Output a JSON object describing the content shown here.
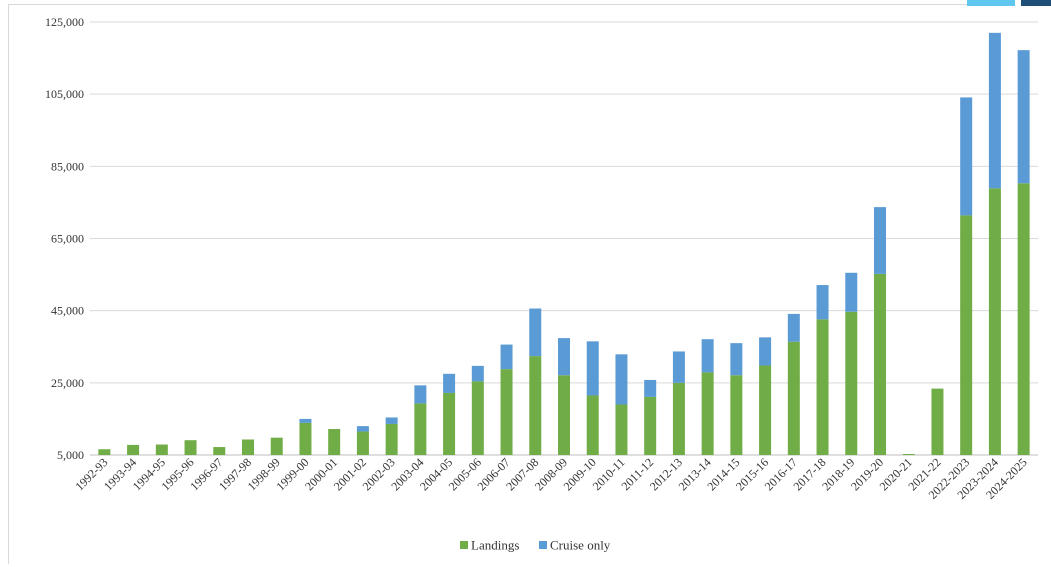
{
  "colors": {
    "landings": "#70ad47",
    "cruise": "#5b9bd5",
    "grid": "#d9d9d9",
    "axis": "#bfbfbf"
  },
  "chart_data": {
    "type": "bar",
    "stacked": true,
    "categories": [
      "1992-93",
      "1993-94",
      "1994-95",
      "1995-96",
      "1996-97",
      "1997-98",
      "1998-99",
      "1999-00",
      "2000-01",
      "2001-02",
      "2002-03",
      "2003-04",
      "2004-05",
      "2005-06",
      "2006-07",
      "2007-08",
      "2008-09",
      "2009-10",
      "2010-11",
      "2011-12",
      "2012-13",
      "2013-14",
      "2014-15",
      "2015-16",
      "2016-17",
      "2017-18",
      "2018-19",
      "2019-20",
      "2020-21",
      "2021-22",
      "2022-2023",
      "2023-2024",
      "2024-2025"
    ],
    "series": [
      {
        "name": "Landings",
        "color": "#70ad47",
        "values": [
          6600,
          7800,
          7900,
          9100,
          7200,
          9300,
          9800,
          13900,
          12200,
          11500,
          13600,
          19300,
          22200,
          25400,
          28800,
          32400,
          27100,
          21500,
          19000,
          21100,
          25000,
          27900,
          27100,
          29800,
          36400,
          42600,
          44700,
          55200,
          4600,
          23400,
          71400,
          78900,
          80300
        ]
      },
      {
        "name": "Cruise only",
        "color": "#5b9bd5",
        "values": [
          0,
          0,
          0,
          0,
          0,
          0,
          0,
          1100,
          0,
          1500,
          1800,
          5000,
          5300,
          4300,
          6800,
          13200,
          10300,
          15000,
          13900,
          4700,
          8700,
          9200,
          8900,
          7800,
          7700,
          9500,
          10800,
          18500,
          0,
          0,
          32700,
          43100,
          36900
        ]
      }
    ],
    "ylim": [
      5000,
      125000
    ],
    "yticks": [
      5000,
      25000,
      45000,
      65000,
      85000,
      105000,
      125000
    ],
    "ytick_labels": [
      "5,000",
      "25,000",
      "45,000",
      "65,000",
      "85,000",
      "105,000",
      "125,000"
    ],
    "grid": true,
    "legend_position": "bottom"
  }
}
